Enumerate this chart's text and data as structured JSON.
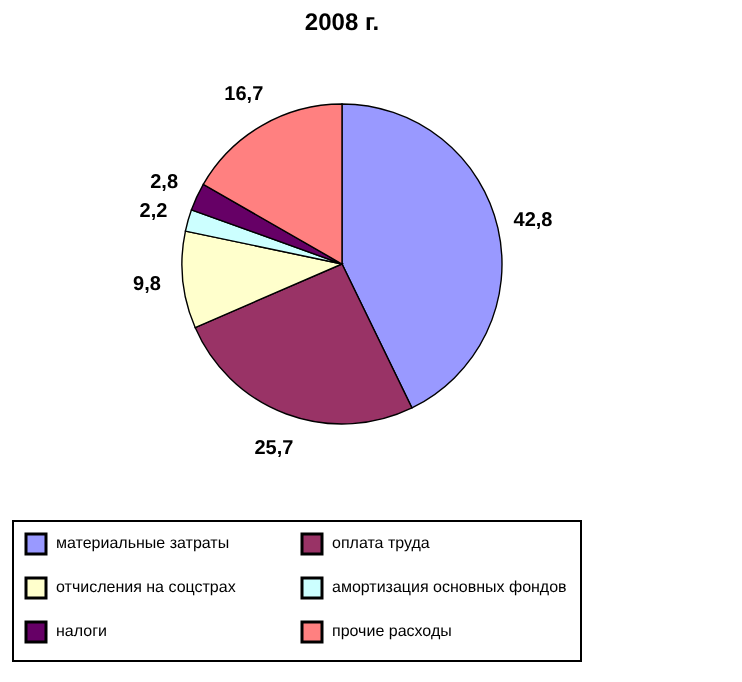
{
  "chart_data": {
    "type": "pie",
    "title": "2008 г.",
    "categories": [
      "материальные затраты",
      "оплата труда",
      "отчисления на соцстрах",
      "амортизация основных фондов",
      "налоги",
      "прочие расходы"
    ],
    "values": [
      42.8,
      25.7,
      9.8,
      2.2,
      2.8,
      16.7
    ],
    "value_labels": [
      "42,8",
      "25,7",
      "9,8",
      "2,2",
      "2,8",
      "16,7"
    ],
    "colors": [
      "#9999ff",
      "#993366",
      "#ffffcc",
      "#ccffff",
      "#660066",
      "#ff8080"
    ],
    "legend": "bottom"
  }
}
